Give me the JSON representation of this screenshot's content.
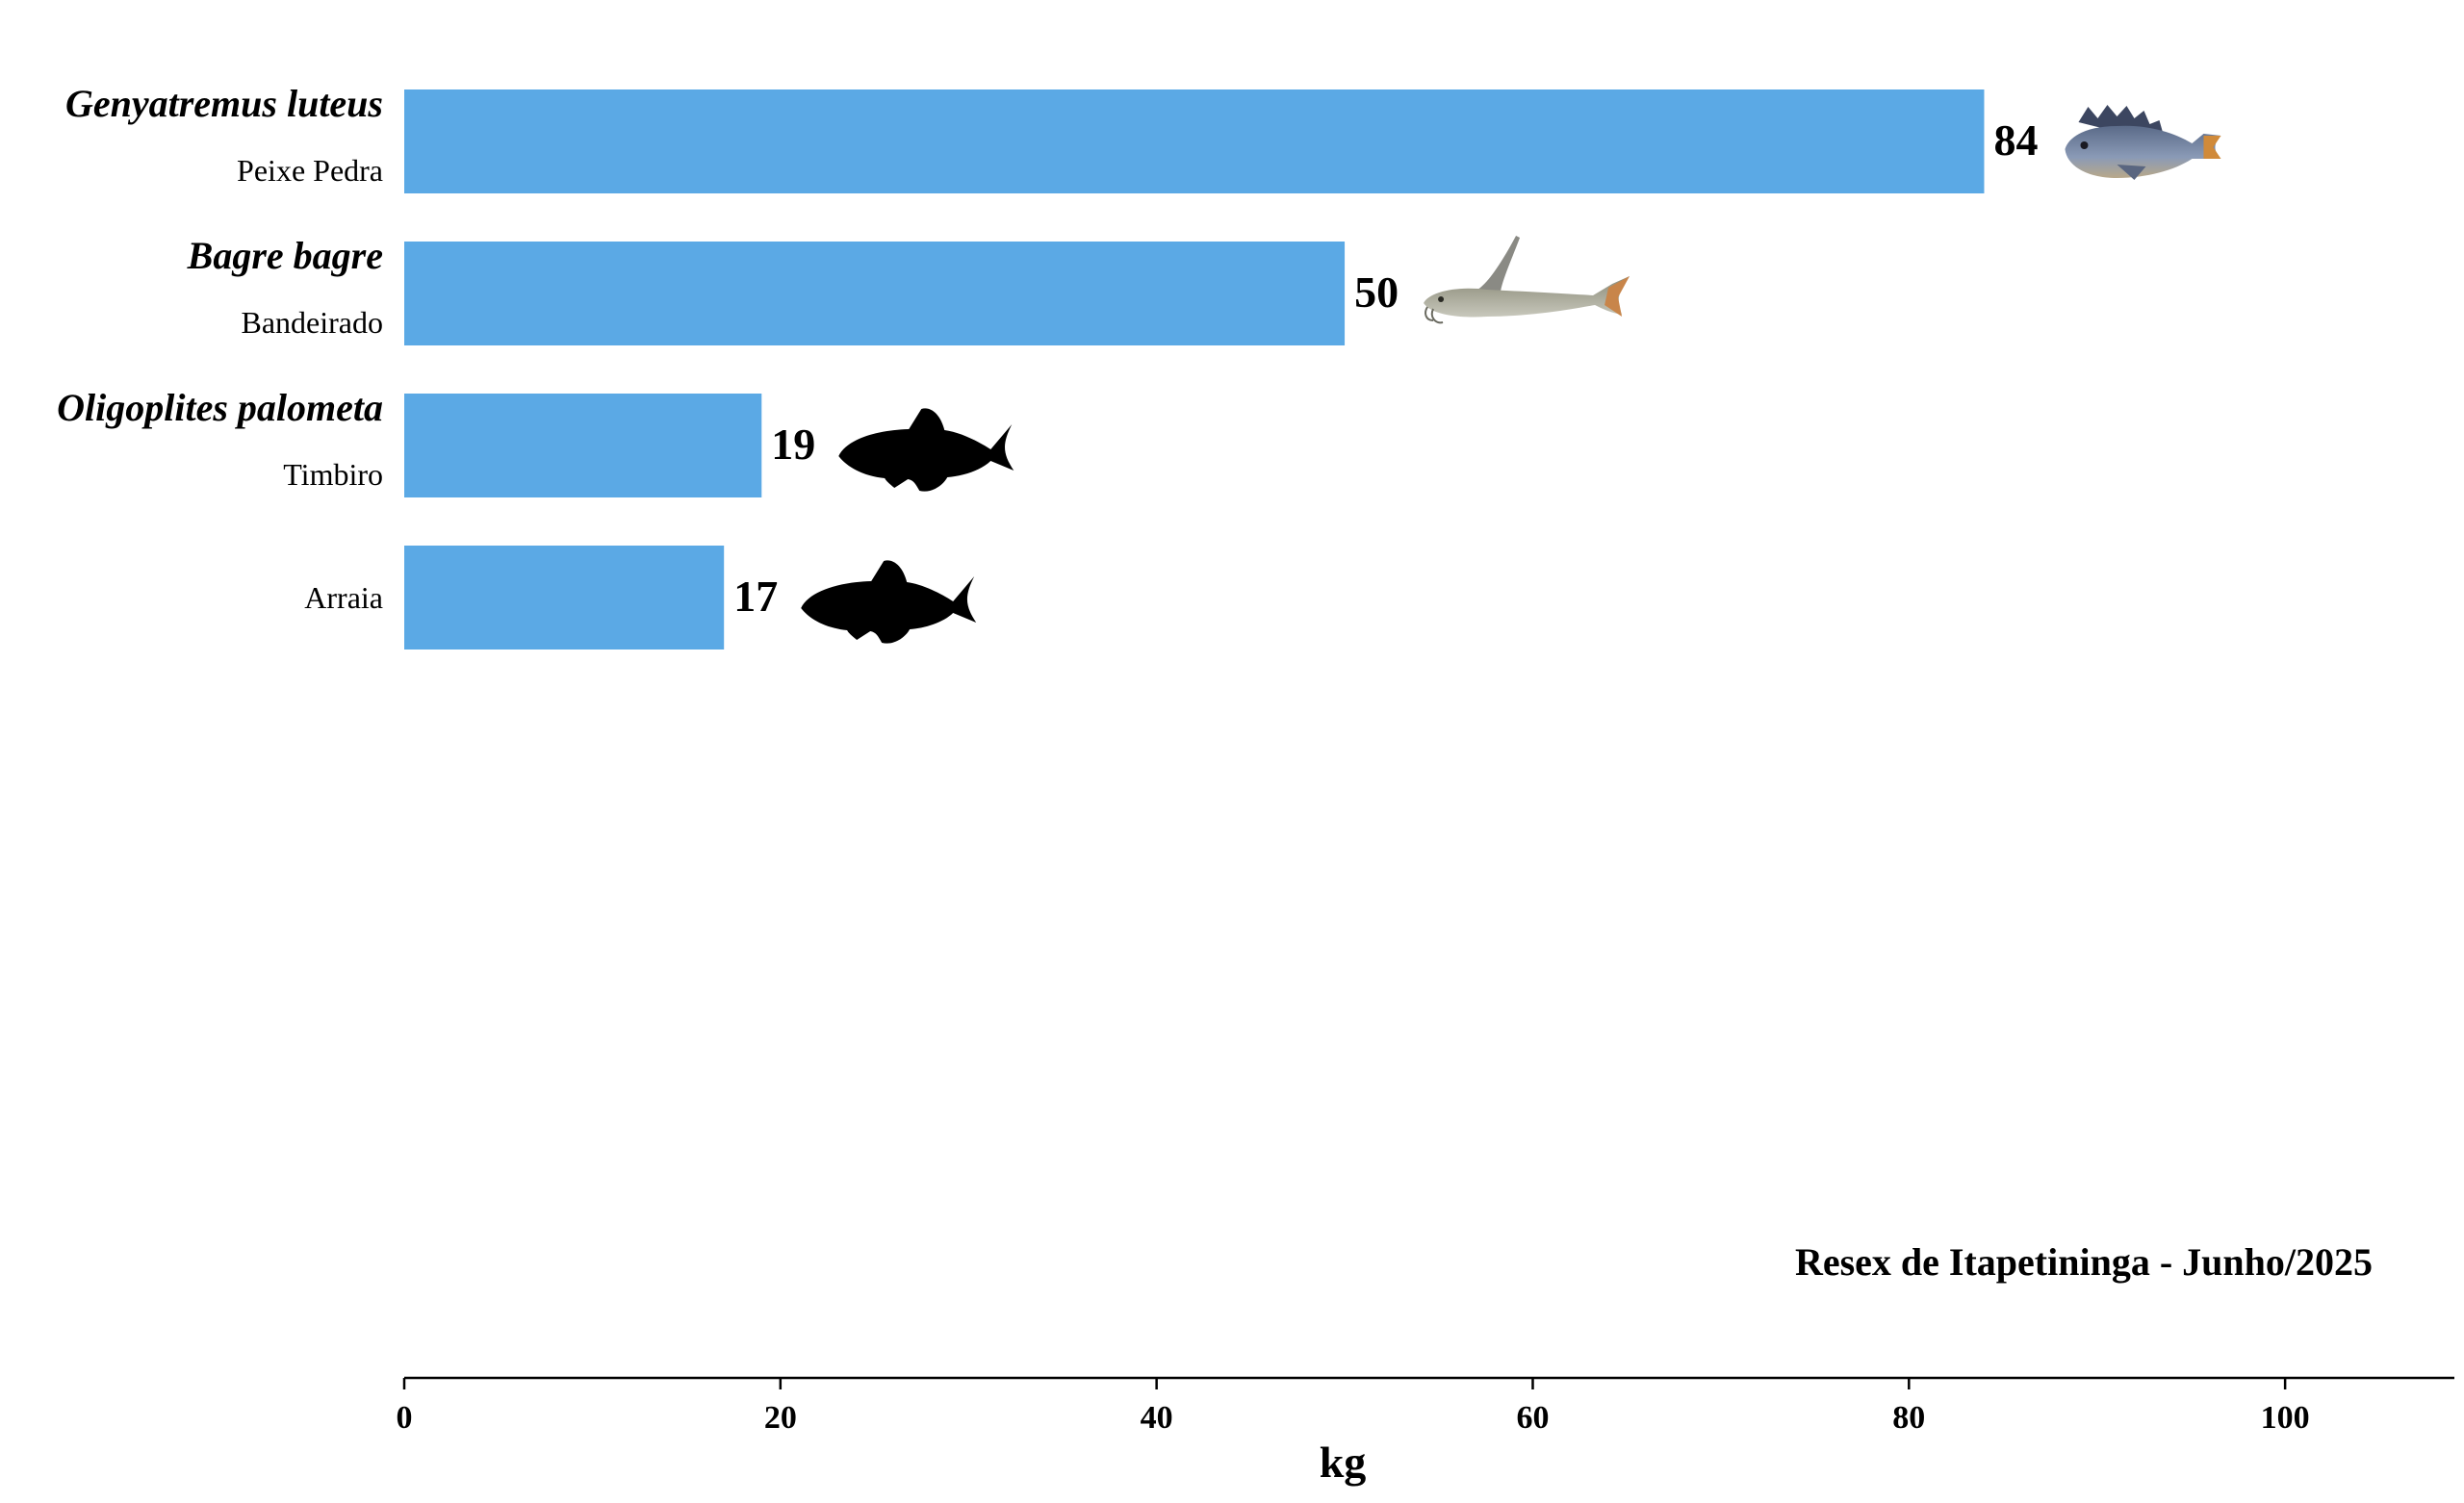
{
  "chart_data": {
    "type": "bar",
    "orientation": "horizontal",
    "title": "",
    "annotation": "Resex de Itapetininga - Junho/2025",
    "xlabel": "kg",
    "ylabel": "",
    "xlim": [
      0,
      109
    ],
    "xticks": [
      0,
      20,
      40,
      60,
      80,
      100
    ],
    "grid": false,
    "bar_color": "#5BA9E5",
    "categories": [
      {
        "scientific": "Genyatremus luteus",
        "common": "Peixe Pedra",
        "value": 84,
        "icon": "photo-fish-icon"
      },
      {
        "scientific": "Bagre bagre",
        "common": "Bandeirado",
        "value": 50,
        "icon": "photo-catfish-icon"
      },
      {
        "scientific": "Oligoplites palometa",
        "common": "Timbiro",
        "value": 19,
        "icon": "fish-silhouette-icon"
      },
      {
        "scientific": "",
        "common": "Arraia",
        "value": 17,
        "icon": "fish-silhouette-icon"
      }
    ]
  }
}
